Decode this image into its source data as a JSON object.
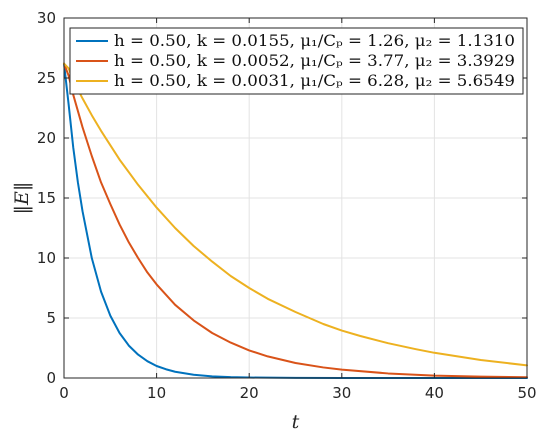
{
  "chart_data": {
    "type": "line",
    "xlabel": "t",
    "ylabel": "‖E‖",
    "xlim": [
      0,
      50
    ],
    "ylim": [
      0,
      30
    ],
    "xticks": [
      0,
      10,
      20,
      30,
      40,
      50
    ],
    "yticks": [
      0,
      5,
      10,
      15,
      20,
      25,
      30
    ],
    "grid": true,
    "legend_position": "top-right",
    "series": [
      {
        "name": "h = 0.50, k = 0.0155, μ₁/Cₚ = 1.26, μ₂ = 1.1310",
        "color": "#0072BD",
        "x": [
          0,
          0.5,
          1,
          1.5,
          2,
          3,
          4,
          5,
          6,
          7,
          8,
          9,
          10,
          11,
          12,
          14,
          16,
          18,
          20,
          25,
          30,
          35,
          40,
          45,
          50
        ],
        "y": [
          26.2,
          22.8,
          19.2,
          16.3,
          13.9,
          10.0,
          7.2,
          5.2,
          3.75,
          2.7,
          1.95,
          1.4,
          1.0,
          0.73,
          0.52,
          0.27,
          0.14,
          0.07,
          0.04,
          0.01,
          0.0,
          0.0,
          0.0,
          0.0,
          0.0
        ]
      },
      {
        "name": "h = 0.50, k = 0.0052, μ₁/Cₚ = 3.77, μ₂ = 3.3929",
        "color": "#D95319",
        "x": [
          0,
          0.5,
          1,
          2,
          3,
          4,
          5,
          6,
          7,
          8,
          9,
          10,
          12,
          14,
          16,
          18,
          20,
          22,
          25,
          28,
          30,
          35,
          40,
          45,
          50
        ],
        "y": [
          26.2,
          25.2,
          23.6,
          20.9,
          18.5,
          16.3,
          14.5,
          12.8,
          11.3,
          10.0,
          8.8,
          7.8,
          6.1,
          4.8,
          3.75,
          2.95,
          2.3,
          1.8,
          1.25,
          0.88,
          0.7,
          0.38,
          0.2,
          0.11,
          0.06
        ]
      },
      {
        "name": "h = 0.50, k = 0.0031, μ₁/Cₚ = 6.28, μ₂ = 5.6549",
        "color": "#EDB120",
        "x": [
          0,
          0.5,
          1,
          2,
          3,
          4,
          5,
          6,
          8,
          10,
          12,
          14,
          16,
          18,
          20,
          22,
          25,
          28,
          30,
          32,
          35,
          38,
          40,
          45,
          50
        ],
        "y": [
          26.2,
          25.8,
          24.8,
          23.3,
          21.9,
          20.6,
          19.4,
          18.2,
          16.1,
          14.2,
          12.5,
          11.0,
          9.7,
          8.5,
          7.5,
          6.6,
          5.5,
          4.5,
          3.95,
          3.5,
          2.9,
          2.4,
          2.1,
          1.5,
          1.05
        ]
      }
    ]
  }
}
